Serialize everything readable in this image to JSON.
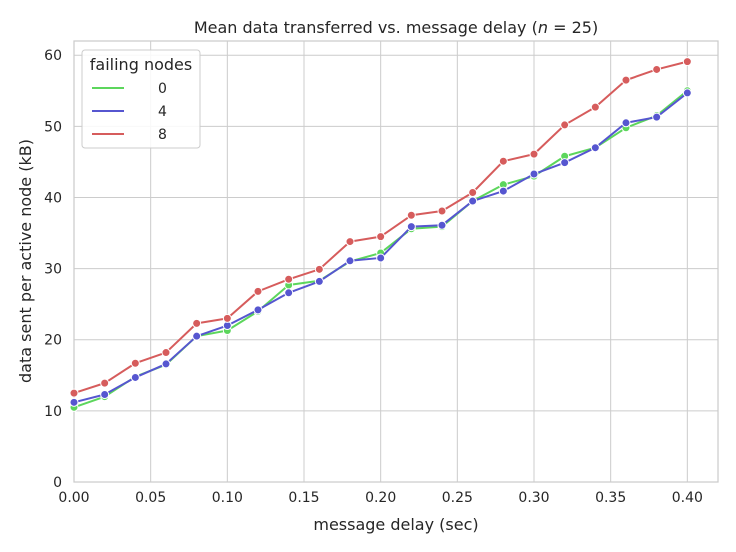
{
  "chart_data": {
    "type": "line",
    "title_pre": "Mean data transferred vs. message delay (",
    "title_var": "n",
    "title_post": " = 25)",
    "xlabel": "message delay (sec)",
    "ylabel": "data sent per active node (kB)",
    "xlim": [
      0,
      0.42
    ],
    "ylim": [
      0,
      62
    ],
    "xticks": [
      0,
      0.05,
      0.1,
      0.15,
      0.2,
      0.25,
      0.3,
      0.35,
      0.4
    ],
    "xtick_labels": [
      "0.00",
      "0.05",
      "0.10",
      "0.15",
      "0.20",
      "0.25",
      "0.30",
      "0.35",
      "0.40"
    ],
    "yticks": [
      0,
      10,
      20,
      30,
      40,
      50,
      60
    ],
    "ytick_labels": [
      "0",
      "10",
      "20",
      "30",
      "40",
      "50",
      "60"
    ],
    "grid": true,
    "legend": {
      "title": "failing nodes",
      "placement": "top-left"
    },
    "x": [
      0,
      0.02,
      0.04,
      0.06,
      0.08,
      0.1,
      0.12,
      0.14,
      0.16,
      0.18,
      0.2,
      0.22,
      0.24,
      0.26,
      0.28,
      0.3,
      0.32,
      0.34,
      0.36,
      0.38,
      0.4
    ],
    "series": [
      {
        "name": "0",
        "color": "#5cd65c",
        "values": [
          10.5,
          12.0,
          14.8,
          16.5,
          20.5,
          21.3,
          24.0,
          27.7,
          28.3,
          31.0,
          32.2,
          35.6,
          35.9,
          39.5,
          41.8,
          43.0,
          45.8,
          47.0,
          49.8,
          51.5,
          55.0
        ]
      },
      {
        "name": "4",
        "color": "#5656d0",
        "values": [
          11.2,
          12.3,
          14.7,
          16.6,
          20.5,
          22.0,
          24.2,
          26.6,
          28.2,
          31.1,
          31.5,
          35.9,
          36.1,
          39.5,
          40.9,
          43.3,
          44.9,
          47.0,
          50.5,
          51.3,
          54.7
        ]
      },
      {
        "name": "8",
        "color": "#d65c5c",
        "values": [
          12.5,
          13.9,
          16.7,
          18.2,
          22.3,
          23.0,
          26.8,
          28.5,
          29.9,
          33.8,
          34.5,
          37.5,
          38.1,
          40.7,
          45.1,
          46.1,
          50.2,
          52.7,
          56.5,
          58.0,
          59.1
        ]
      }
    ]
  }
}
